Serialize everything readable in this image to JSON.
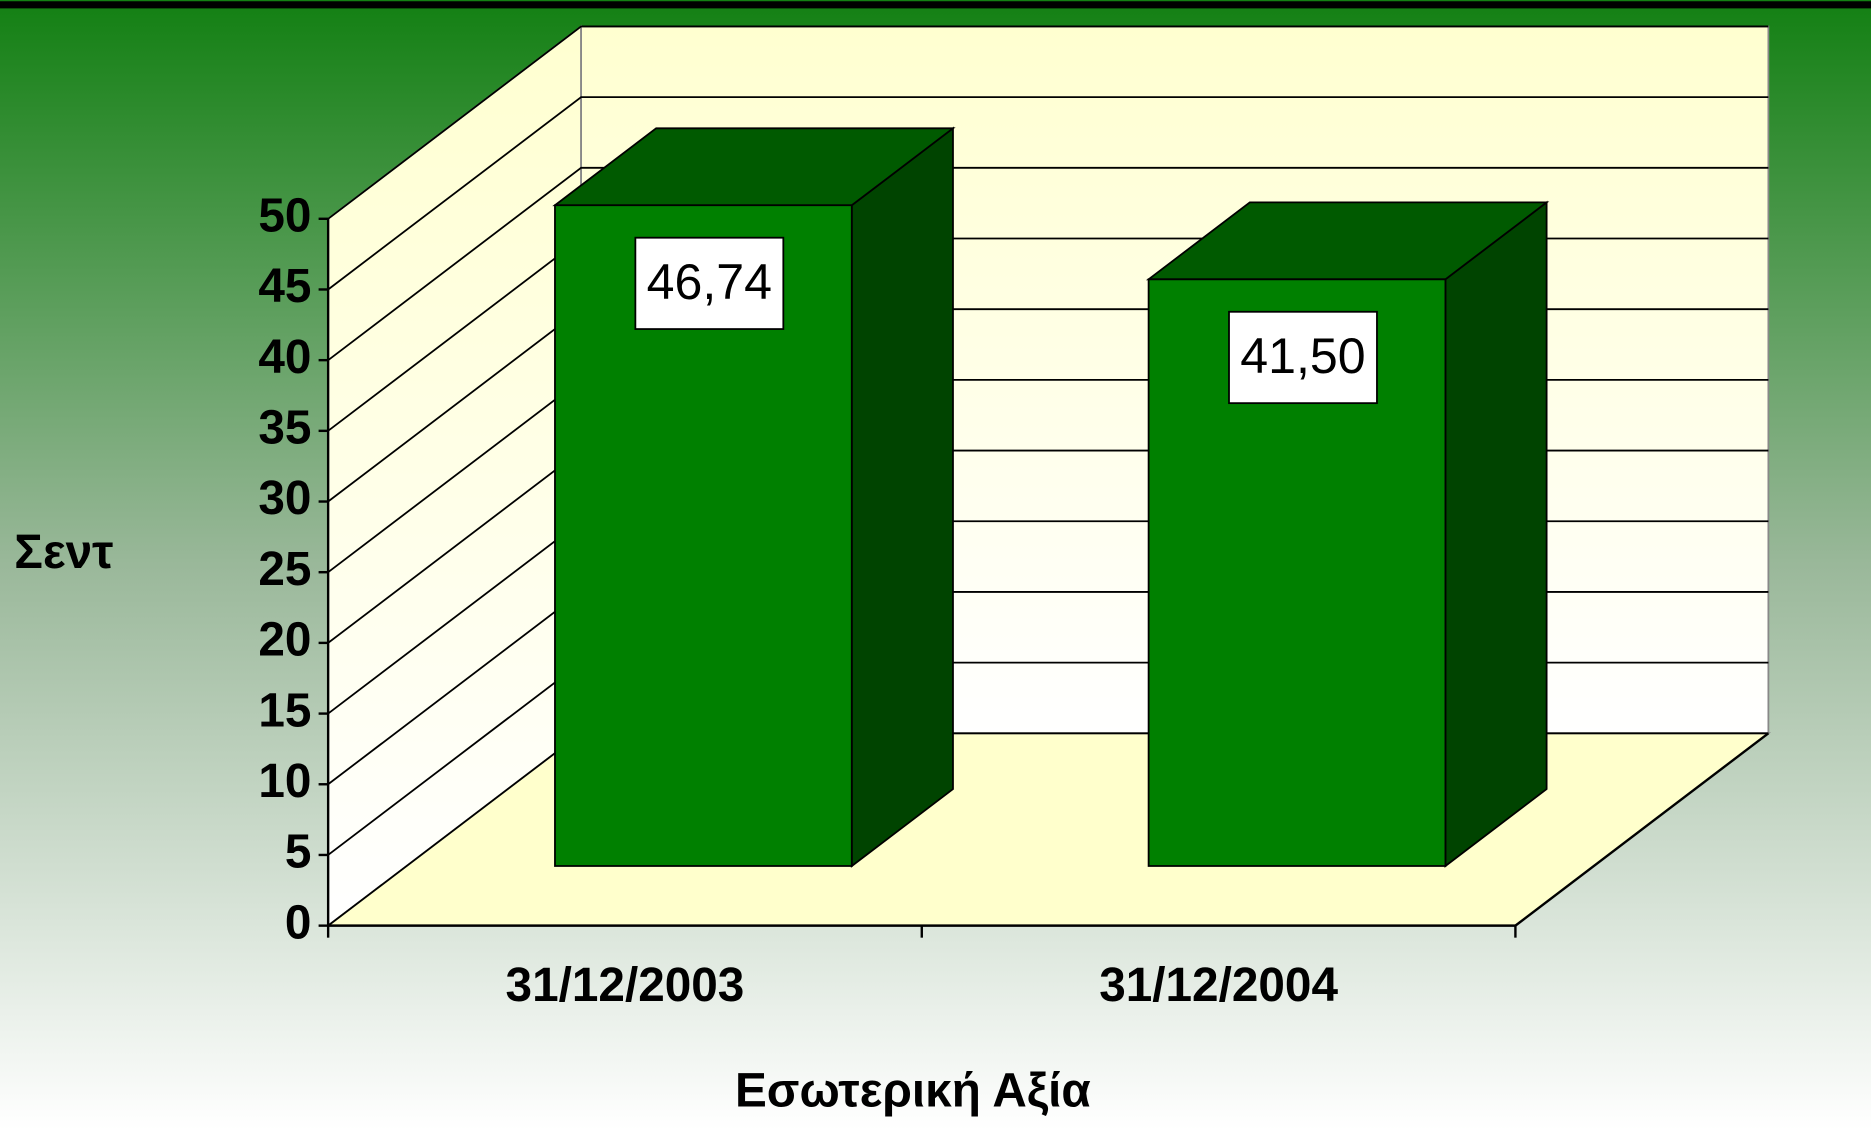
{
  "chart_data": {
    "type": "bar3d",
    "categories": [
      "31/12/2003",
      "31/12/2004"
    ],
    "values": [
      46.74,
      41.5
    ],
    "value_labels": [
      "46,74",
      "41,50"
    ],
    "color": "#008000",
    "ylim": [
      0,
      50
    ],
    "yticks": [
      0,
      5,
      10,
      15,
      20,
      25,
      30,
      35,
      40,
      45,
      50
    ],
    "grid": true,
    "ylabel": "Σεντ",
    "xlabel": "Εσωτερική Αξία"
  }
}
